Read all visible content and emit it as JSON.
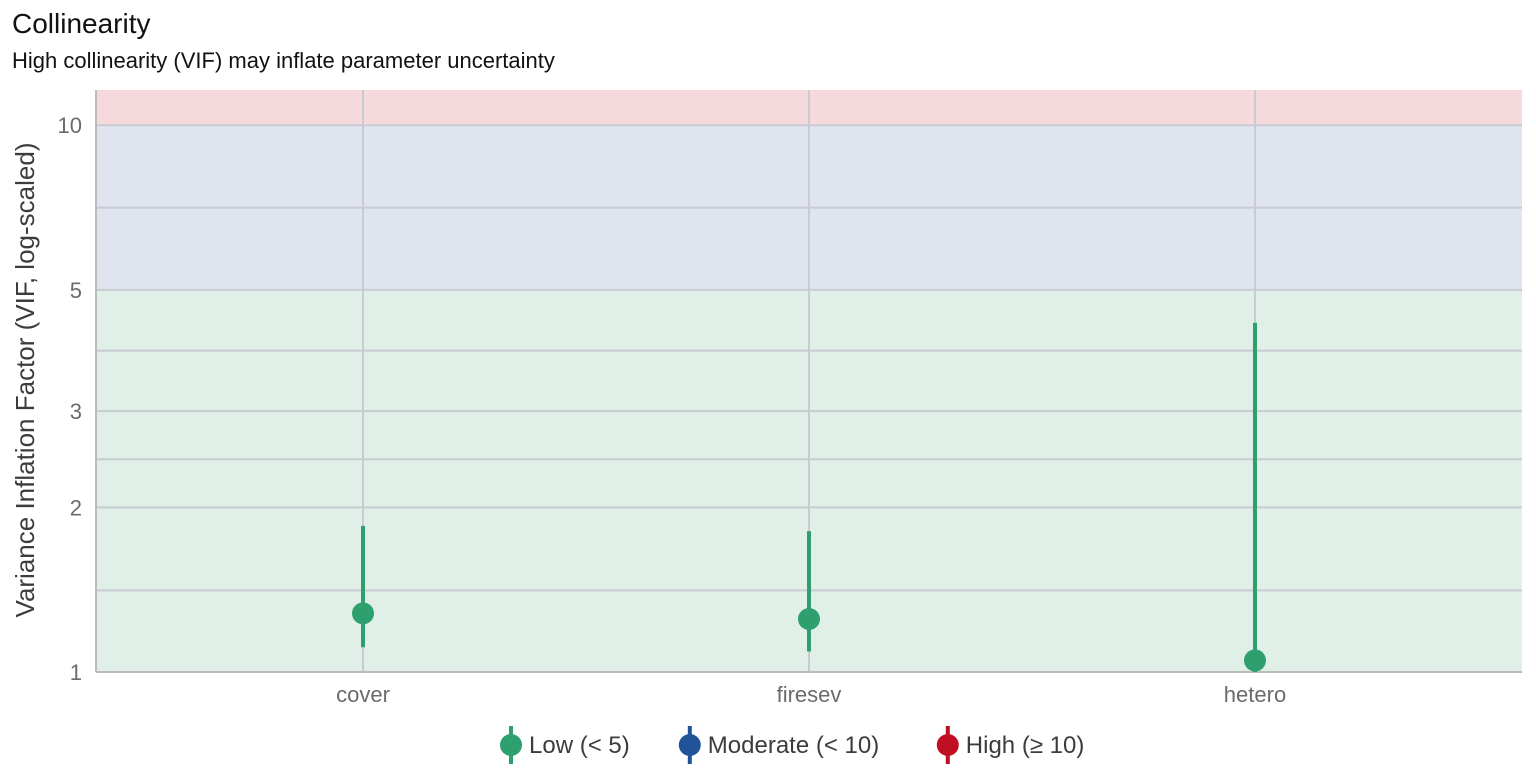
{
  "chart_data": {
    "type": "scatter",
    "title": "Collinearity",
    "subtitle": "High collinearity (VIF) may inflate parameter uncertainty",
    "xlabel": "",
    "ylabel": "Variance Inflation Factor (VIF, log-scaled)",
    "y_scale": "log",
    "ylim": [
      1,
      11.6
    ],
    "y_ticks": [
      1,
      2,
      3,
      5,
      10
    ],
    "y_minor_gridlines": [
      1.41,
      2.45,
      3.87,
      7.07
    ],
    "grid": true,
    "categories": [
      "cover",
      "firesev",
      "hetero"
    ],
    "points": [
      {
        "x": "cover",
        "vif": 1.28,
        "ci_low": 1.11,
        "ci_high": 1.85,
        "group": "Low (< 5)"
      },
      {
        "x": "firesev",
        "vif": 1.25,
        "ci_low": 1.09,
        "ci_high": 1.81,
        "group": "Low (< 5)"
      },
      {
        "x": "hetero",
        "vif": 1.05,
        "ci_low": 1.0,
        "ci_high": 4.35,
        "group": "Low (< 5)"
      }
    ],
    "bands": [
      {
        "from": 1,
        "to": 5,
        "color": "#e0f0e8"
      },
      {
        "from": 5,
        "to": 10,
        "color": "#dfe4ef"
      },
      {
        "from": 10,
        "to": 11.6,
        "color": "#f6d9dd"
      }
    ],
    "legend_position": "bottom",
    "legend": [
      {
        "label": "Low (< 5)",
        "color": "#2e9f6e"
      },
      {
        "label": "Moderate (< 10)",
        "color": "#1f5499"
      },
      {
        "label": "High (≥ 10)",
        "color": "#c00e22"
      }
    ],
    "colors": {
      "grid": "#c8ccd2",
      "axis": "#bbbbbb"
    }
  }
}
